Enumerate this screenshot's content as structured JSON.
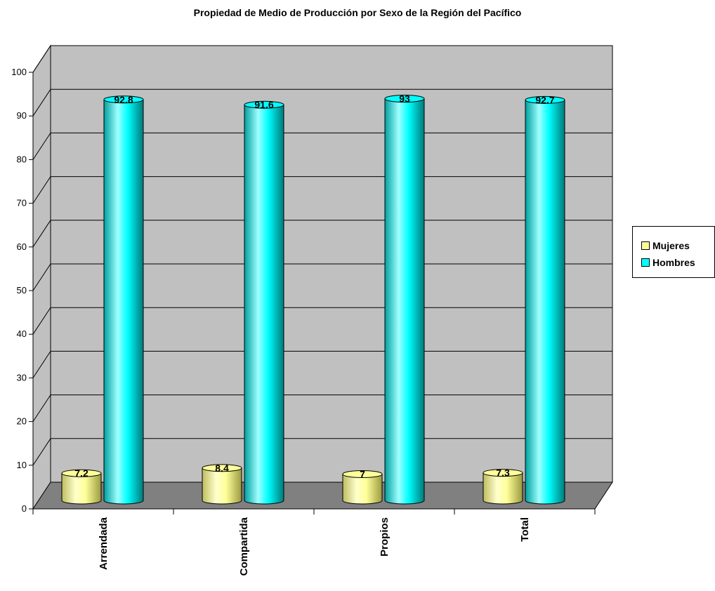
{
  "chart_data": {
    "type": "bar",
    "title": "Propiedad de Medio de Producción por Sexo de la Región del Pacífico",
    "categories": [
      "Arrendada",
      "Compartida",
      "Propios",
      "Total"
    ],
    "series": [
      {
        "name": "Mujeres",
        "values": [
          7.2,
          8.4,
          7,
          7.3
        ],
        "labels": [
          "7.2",
          "8.4",
          "7",
          "7.3"
        ],
        "color": "#ffff99"
      },
      {
        "name": "Hombres",
        "values": [
          92.8,
          91.6,
          93,
          92.7
        ],
        "labels": [
          "92.8",
          "91.6",
          "93",
          "92.7"
        ],
        "color": "#00ffff"
      }
    ],
    "y_ticks": [
      "0",
      "10",
      "20",
      "30",
      "40",
      "50",
      "60",
      "70",
      "80",
      "90",
      "100"
    ],
    "ylim": [
      0,
      100
    ],
    "grid": true,
    "legend_position": "right",
    "style": "3d-cylinder",
    "wall_color": "#c0c0c0",
    "floor_color": "#808080"
  }
}
